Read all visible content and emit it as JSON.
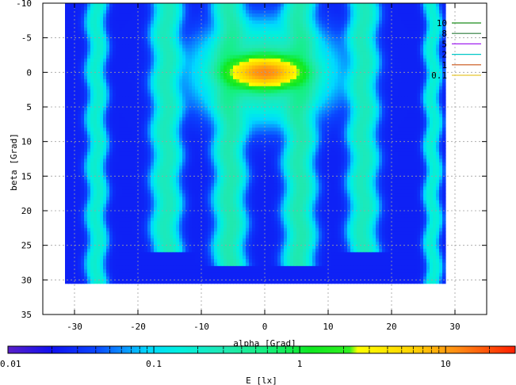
{
  "chart_data": {
    "type": "heatmap",
    "xlabel": "alpha [Grad]",
    "ylabel": "beta [Grad]",
    "colorbar_label": "E [lx]",
    "x_range": [
      -35,
      35
    ],
    "y_range": [
      -10,
      35
    ],
    "y_reversed": true,
    "data_extent": {
      "x": [
        -31.5,
        28.5
      ],
      "y": [
        -10,
        30.5
      ]
    },
    "x_ticks": [
      -30,
      -20,
      -10,
      0,
      10,
      20,
      30
    ],
    "y_ticks": [
      -10,
      -5,
      0,
      5,
      10,
      15,
      20,
      25,
      30,
      35
    ],
    "grid": true,
    "colorbar": {
      "scale": "log",
      "range": [
        0.01,
        30
      ],
      "ticks": [
        {
          "value": 0.01,
          "label": "0.01"
        },
        {
          "value": 0.1,
          "label": "0.1"
        },
        {
          "value": 1,
          "label": "1"
        },
        {
          "value": 10,
          "label": "10"
        }
      ],
      "stops": [
        {
          "value": 0.01,
          "color": "#5a1fc8"
        },
        {
          "value": 0.02,
          "color": "#1010f0"
        },
        {
          "value": 0.04,
          "color": "#0a46ff"
        },
        {
          "value": 0.06,
          "color": "#0a8cff"
        },
        {
          "value": 0.09,
          "color": "#00d8ff"
        },
        {
          "value": 0.15,
          "color": "#00f0e0"
        },
        {
          "value": 0.3,
          "color": "#20e8b4"
        },
        {
          "value": 0.6,
          "color": "#14f07c"
        },
        {
          "value": 1.2,
          "color": "#10e820"
        },
        {
          "value": 2.2,
          "color": "#30f020"
        },
        {
          "value": 2.5,
          "color": "#ffff00"
        },
        {
          "value": 6,
          "color": "#ffd200"
        },
        {
          "value": 12,
          "color": "#ff8c14"
        },
        {
          "value": 30,
          "color": "#ff1e00"
        }
      ]
    },
    "legend": {
      "position": "top-right",
      "entries": [
        {
          "label": "10",
          "color": "#1a8c1a"
        },
        {
          "label": "8",
          "color": "#2a7a3a"
        },
        {
          "label": "5",
          "color": "#a020f0"
        },
        {
          "label": "2",
          "color": "#00c8c8"
        },
        {
          "label": "1",
          "color": "#c85014"
        },
        {
          "label": "0.1",
          "color": "#e6c832"
        }
      ]
    },
    "background_value": 0.025,
    "features": [
      {
        "kind": "band",
        "x": -26.5,
        "y0": -10,
        "y1": 30.5,
        "halfwidth": 1.2,
        "peak": 0.18
      },
      {
        "kind": "band",
        "x": -15.5,
        "y0": -10,
        "y1": 26,
        "halfwidth": 1.7,
        "peak": 0.25
      },
      {
        "kind": "band",
        "x": -5.5,
        "y0": -10,
        "y1": 28,
        "halfwidth": 1.8,
        "peak": 0.3
      },
      {
        "kind": "band",
        "x": 5.5,
        "y0": -10,
        "y1": 28,
        "halfwidth": 1.8,
        "peak": 0.3
      },
      {
        "kind": "band",
        "x": 15.5,
        "y0": -10,
        "y1": 26,
        "halfwidth": 1.7,
        "peak": 0.25
      },
      {
        "kind": "band",
        "x": 26.5,
        "y0": -10,
        "y1": 30.5,
        "halfwidth": 1.0,
        "peak": 0.16
      },
      {
        "kind": "blob",
        "x": 0,
        "y": 0,
        "sx": 8,
        "sy": 5,
        "peak": 0.45
      },
      {
        "kind": "blob",
        "x": 0,
        "y": 0,
        "sx": 3.8,
        "sy": 1.5,
        "peak": 12
      }
    ]
  }
}
